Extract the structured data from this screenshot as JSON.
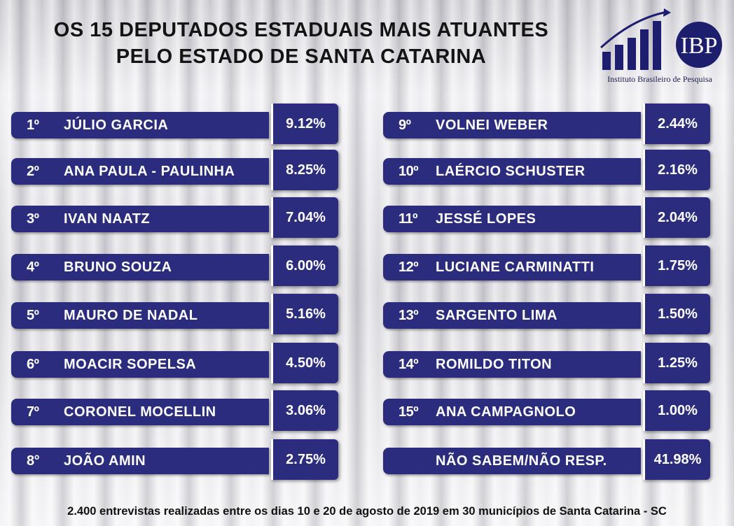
{
  "title": {
    "line1": "OS 15 DEPUTADOS ESTADUAIS MAIS ATUANTES",
    "line2": "PELO ESTADO DE SANTA CATARINA"
  },
  "logo": {
    "letters": "IBP",
    "subtitle": "Instituto Brasileiro de Pesquisa",
    "icon": "bar-chart-arrow-icon",
    "color": "#1e1e6f"
  },
  "colors": {
    "bar": "#2c2c7f",
    "text": "#ffffff"
  },
  "chart_data": {
    "type": "table",
    "columns": [
      "rank",
      "name",
      "percent"
    ],
    "rows": [
      {
        "rank": "1º",
        "name": "JÚLIO GARCIA",
        "percent": "9.12%",
        "value": 9.12
      },
      {
        "rank": "2º",
        "name": "ANA PAULA - PAULINHA",
        "percent": "8.25%",
        "value": 8.25
      },
      {
        "rank": "3º",
        "name": "IVAN NAATZ",
        "percent": "7.04%",
        "value": 7.04
      },
      {
        "rank": "4º",
        "name": "BRUNO SOUZA",
        "percent": "6.00%",
        "value": 6.0
      },
      {
        "rank": "5º",
        "name": "MAURO DE NADAL",
        "percent": "5.16%",
        "value": 5.16
      },
      {
        "rank": "6º",
        "name": "MOACIR SOPELSA",
        "percent": "4.50%",
        "value": 4.5
      },
      {
        "rank": "7º",
        "name": "CORONEL MOCELLIN",
        "percent": "3.06%",
        "value": 3.06
      },
      {
        "rank": "8°",
        "name": "JOÃO AMIN",
        "percent": "2.75%",
        "value": 2.75
      },
      {
        "rank": "9º",
        "name": "VOLNEI WEBER",
        "percent": "2.44%",
        "value": 2.44
      },
      {
        "rank": "10º",
        "name": "LAÉRCIO SCHUSTER",
        "percent": "2.16%",
        "value": 2.16
      },
      {
        "rank": "11º",
        "name": "JESSÉ LOPES",
        "percent": "2.04%",
        "value": 2.04
      },
      {
        "rank": "12º",
        "name": "LUCIANE CARMINATTI",
        "percent": "1.75%",
        "value": 1.75
      },
      {
        "rank": "13º",
        "name": "SARGENTO LIMA",
        "percent": "1.50%",
        "value": 1.5
      },
      {
        "rank": "14º",
        "name": "ROMILDO TITON",
        "percent": "1.25%",
        "value": 1.25
      },
      {
        "rank": "15º",
        "name": "ANA CAMPAGNOLO",
        "percent": "1.00%",
        "value": 1.0
      },
      {
        "rank": "",
        "name": "NÃO SABEM/NÃO RESP.",
        "percent": "41.98%",
        "value": 41.98
      }
    ]
  },
  "footer": "2.400 entrevistas realizadas entre os dias 10 e 20 de agosto de 2019 em 30 municípios de Santa Catarina - SC"
}
